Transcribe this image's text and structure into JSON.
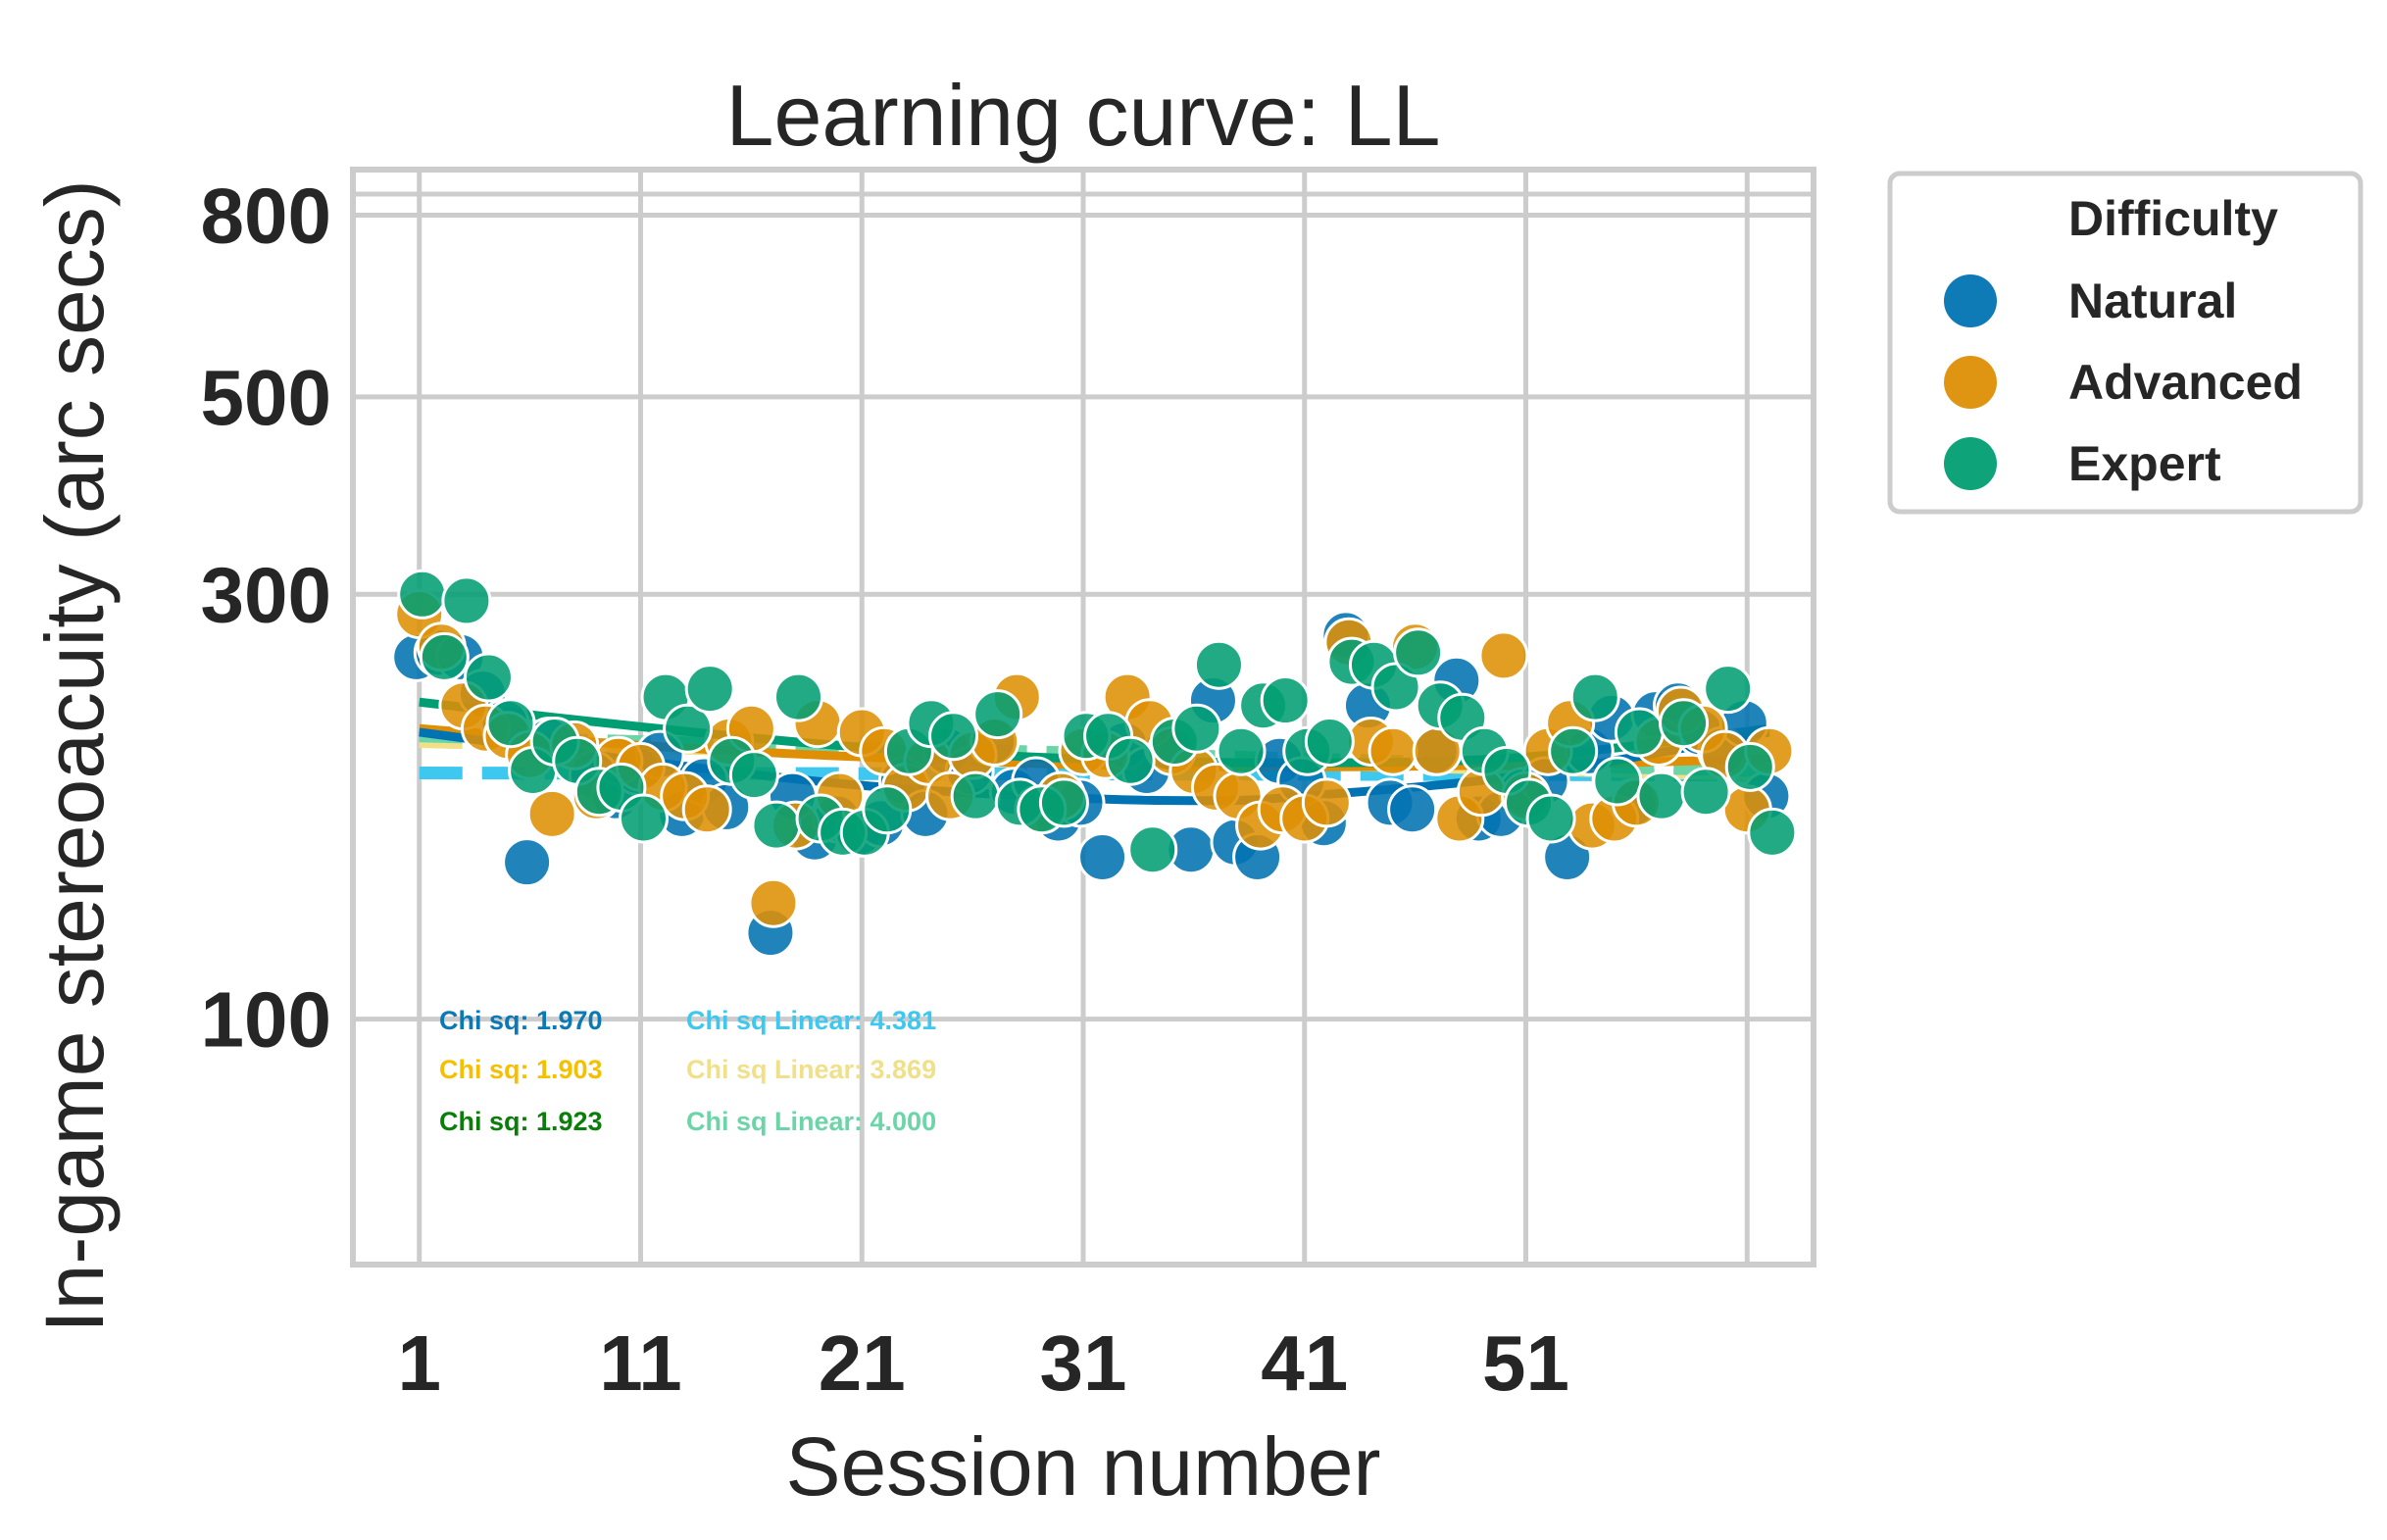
{
  "chart_data": {
    "type": "scatter",
    "title": "Learning curve: LL",
    "xlabel": "Session number",
    "ylabel": "In-game stereoacuity (arc secs)",
    "yscale": "log",
    "xlim": [
      -2,
      64
    ],
    "ylim": [
      53,
      900
    ],
    "xticks": [
      1,
      11,
      21,
      31,
      41,
      51
    ],
    "xtick_labels": [
      "1",
      "11",
      "21",
      "31",
      "41",
      "51"
    ],
    "yticks": [
      100,
      300,
      500,
      800
    ],
    "ytick_labels": [
      "100",
      "300",
      "500",
      "800"
    ],
    "grid": true,
    "legend": {
      "title": "Difficulty",
      "placement": "outside-top-right",
      "entries": [
        {
          "label": "Natural",
          "color": "#0173b2"
        },
        {
          "label": "Advanced",
          "color": "#de8f05"
        },
        {
          "label": "Expert",
          "color": "#029e73"
        }
      ]
    },
    "series": [
      {
        "name": "Natural",
        "color": "#0173b2",
        "points": [
          [
            1,
            255
          ],
          [
            2,
            258
          ],
          [
            3,
            255
          ],
          [
            4,
            232
          ],
          [
            5,
            215
          ],
          [
            6,
            150
          ],
          [
            7,
            205
          ],
          [
            9,
            188
          ],
          [
            10,
            178
          ],
          [
            11,
            190
          ],
          [
            12,
            198
          ],
          [
            13,
            170
          ],
          [
            14,
            185
          ],
          [
            15,
            173
          ],
          [
            17,
            125
          ],
          [
            18,
            178
          ],
          [
            19,
            160
          ],
          [
            20,
            168
          ],
          [
            21,
            162
          ],
          [
            22,
            166
          ],
          [
            23,
            185
          ],
          [
            24,
            170
          ],
          [
            25,
            200
          ],
          [
            26,
            190
          ],
          [
            27,
            205
          ],
          [
            28,
            180
          ],
          [
            29,
            185
          ],
          [
            30,
            168
          ],
          [
            31,
            175
          ],
          [
            32,
            152
          ],
          [
            33,
            203
          ],
          [
            34,
            190
          ],
          [
            35,
            202
          ],
          [
            36,
            155
          ],
          [
            37,
            228
          ],
          [
            38,
            158
          ],
          [
            39,
            152
          ],
          [
            40,
            195
          ],
          [
            41,
            185
          ],
          [
            42,
            166
          ],
          [
            43,
            270
          ],
          [
            44,
            225
          ],
          [
            45,
            175
          ],
          [
            46,
            172
          ],
          [
            47,
            200
          ],
          [
            48,
            240
          ],
          [
            49,
            168
          ],
          [
            50,
            170
          ],
          [
            51,
            180
          ],
          [
            52,
            185
          ],
          [
            53,
            152
          ],
          [
            54,
            200
          ],
          [
            55,
            218
          ],
          [
            56,
            175
          ],
          [
            57,
            220
          ],
          [
            58,
            225
          ],
          [
            59,
            210
          ],
          [
            60,
            200
          ],
          [
            61,
            215
          ],
          [
            62,
            178
          ]
        ]
      },
      {
        "name": "Advanced",
        "color": "#de8f05",
        "points": [
          [
            1,
            285
          ],
          [
            2,
            262
          ],
          [
            3,
            225
          ],
          [
            4,
            212
          ],
          [
            5,
            208
          ],
          [
            6,
            198
          ],
          [
            7,
            170
          ],
          [
            8,
            203
          ],
          [
            9,
            178
          ],
          [
            10,
            195
          ],
          [
            11,
            192
          ],
          [
            12,
            182
          ],
          [
            13,
            178
          ],
          [
            14,
            172
          ],
          [
            15,
            205
          ],
          [
            16,
            212
          ],
          [
            17,
            135
          ],
          [
            18,
            165
          ],
          [
            19,
            215
          ],
          [
            20,
            178
          ],
          [
            21,
            210
          ],
          [
            22,
            200
          ],
          [
            23,
            182
          ],
          [
            24,
            195
          ],
          [
            25,
            178
          ],
          [
            26,
            198
          ],
          [
            27,
            205
          ],
          [
            28,
            230
          ],
          [
            29,
            172
          ],
          [
            30,
            178
          ],
          [
            31,
            200
          ],
          [
            32,
            198
          ],
          [
            33,
            230
          ],
          [
            34,
            215
          ],
          [
            35,
            200
          ],
          [
            36,
            190
          ],
          [
            37,
            182
          ],
          [
            38,
            178
          ],
          [
            39,
            165
          ],
          [
            40,
            172
          ],
          [
            41,
            168
          ],
          [
            42,
            175
          ],
          [
            43,
            265
          ],
          [
            44,
            205
          ],
          [
            45,
            200
          ],
          [
            46,
            262
          ],
          [
            47,
            200
          ],
          [
            48,
            168
          ],
          [
            49,
            180
          ],
          [
            50,
            256
          ],
          [
            51,
            178
          ],
          [
            52,
            200
          ],
          [
            53,
            215
          ],
          [
            54,
            165
          ],
          [
            55,
            168
          ],
          [
            56,
            175
          ],
          [
            57,
            205
          ],
          [
            58,
            222
          ],
          [
            59,
            212
          ],
          [
            60,
            198
          ],
          [
            61,
            172
          ],
          [
            62,
            200
          ]
        ]
      },
      {
        "name": "Expert",
        "color": "#029e73",
        "points": [
          [
            1,
            300
          ],
          [
            2,
            255
          ],
          [
            3,
            295
          ],
          [
            4,
            242
          ],
          [
            5,
            215
          ],
          [
            6,
            190
          ],
          [
            7,
            205
          ],
          [
            8,
            195
          ],
          [
            9,
            180
          ],
          [
            10,
            182
          ],
          [
            11,
            168
          ],
          [
            12,
            230
          ],
          [
            13,
            212
          ],
          [
            14,
            235
          ],
          [
            15,
            195
          ],
          [
            16,
            188
          ],
          [
            17,
            165
          ],
          [
            18,
            230
          ],
          [
            19,
            168
          ],
          [
            20,
            162
          ],
          [
            21,
            162
          ],
          [
            22,
            172
          ],
          [
            23,
            200
          ],
          [
            24,
            215
          ],
          [
            25,
            208
          ],
          [
            26,
            178
          ],
          [
            27,
            220
          ],
          [
            28,
            175
          ],
          [
            29,
            172
          ],
          [
            30,
            175
          ],
          [
            31,
            208
          ],
          [
            32,
            208
          ],
          [
            33,
            195
          ],
          [
            34,
            155
          ],
          [
            35,
            205
          ],
          [
            36,
            212
          ],
          [
            37,
            250
          ],
          [
            38,
            200
          ],
          [
            39,
            225
          ],
          [
            40,
            228
          ],
          [
            41,
            200
          ],
          [
            42,
            205
          ],
          [
            43,
            252
          ],
          [
            44,
            250
          ],
          [
            45,
            236
          ],
          [
            46,
            258
          ],
          [
            47,
            225
          ],
          [
            48,
            218
          ],
          [
            49,
            200
          ],
          [
            50,
            190
          ],
          [
            51,
            175
          ],
          [
            52,
            168
          ],
          [
            53,
            200
          ],
          [
            54,
            230
          ],
          [
            55,
            185
          ],
          [
            56,
            210
          ],
          [
            57,
            178
          ],
          [
            58,
            215
          ],
          [
            59,
            180
          ],
          [
            60,
            235
          ],
          [
            61,
            192
          ],
          [
            62,
            162
          ]
        ]
      }
    ],
    "fits": [
      {
        "series": "Natural",
        "kind": "quadratic",
        "color": "#0173b2",
        "style": "solid",
        "points": [
          [
            1,
            210
          ],
          [
            11,
            195
          ],
          [
            21,
            183
          ],
          [
            31,
            177
          ],
          [
            37,
            176
          ],
          [
            41,
            178
          ],
          [
            51,
            188
          ],
          [
            62,
            210
          ]
        ]
      },
      {
        "series": "Advanced",
        "kind": "quadratic",
        "color": "#de8f05",
        "style": "solid",
        "points": [
          [
            1,
            212
          ],
          [
            11,
            203
          ],
          [
            21,
            197
          ],
          [
            31,
            193
          ],
          [
            41,
            192
          ],
          [
            51,
            193
          ],
          [
            62,
            196
          ]
        ]
      },
      {
        "series": "Expert",
        "kind": "quadratic",
        "color": "#029e73",
        "style": "solid",
        "points": [
          [
            1,
            227
          ],
          [
            11,
            213
          ],
          [
            21,
            202
          ],
          [
            31,
            196
          ],
          [
            41,
            194
          ],
          [
            51,
            197
          ],
          [
            62,
            212
          ]
        ]
      },
      {
        "series": "Natural",
        "kind": "linear",
        "color": "#3ec8ef",
        "style": "dashed",
        "points": [
          [
            1,
            189
          ],
          [
            62,
            188
          ]
        ]
      },
      {
        "series": "Advanced",
        "kind": "linear",
        "color": "#f0e08a",
        "style": "dashed",
        "points": [
          [
            1,
            205
          ],
          [
            62,
            188
          ]
        ]
      },
      {
        "series": "Expert",
        "kind": "linear",
        "color": "#6bd5a8",
        "style": "dashed",
        "points": [
          [
            1,
            208
          ],
          [
            62,
            190
          ]
        ]
      }
    ],
    "annotations": [
      {
        "text": "Chi sq: 1.970",
        "color": "#0a79b5"
      },
      {
        "text": "Chi sq Linear: 4.381",
        "color": "#3ec8ef"
      },
      {
        "text": "Chi sq: 1.903",
        "color": "#f5c000"
      },
      {
        "text": "Chi sq Linear: 3.869",
        "color": "#f0e08a"
      },
      {
        "text": "Chi sq: 1.923",
        "color": "#0a7d0a"
      },
      {
        "text": "Chi sq Linear: 4.000",
        "color": "#6bd5a8"
      }
    ]
  }
}
